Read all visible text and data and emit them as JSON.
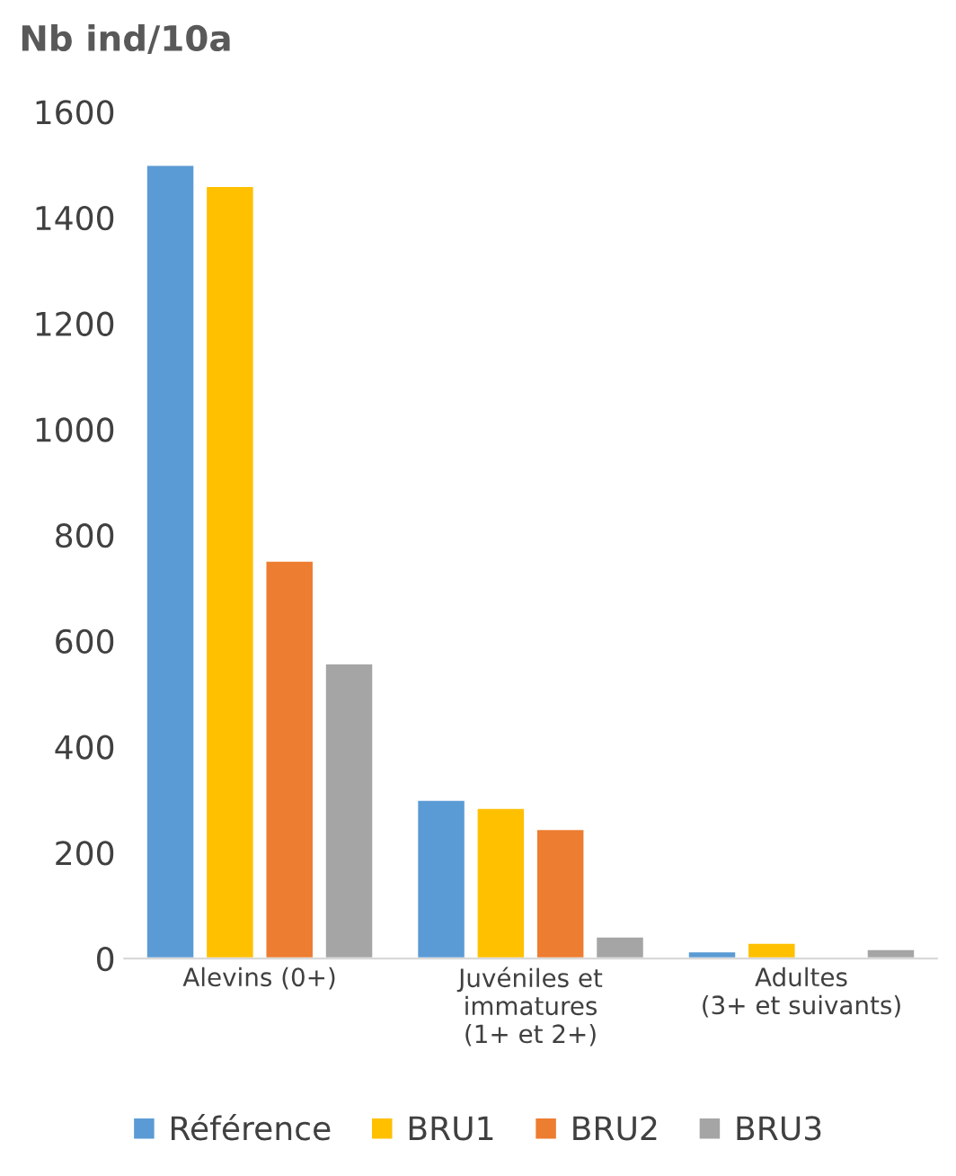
{
  "chart_data": {
    "type": "bar",
    "title": "Nb ind/10a",
    "categories": [
      "Alevins (0+)",
      "Juvéniles et\nimmatures\n(1+ et 2+)",
      "Adultes\n(3+ et suivants)"
    ],
    "series": [
      {
        "name": "Référence",
        "color": "#5b9bd5",
        "values": [
          1500,
          300,
          14
        ]
      },
      {
        "name": "BRU1",
        "color": "#ffc000",
        "values": [
          1460,
          285,
          30
        ]
      },
      {
        "name": "BRU2",
        "color": "#ed7d31",
        "values": [
          752,
          245,
          null
        ]
      },
      {
        "name": "BRU3",
        "color": "#a5a5a5",
        "values": [
          558,
          42,
          18
        ]
      }
    ],
    "ylim": [
      0,
      1600
    ],
    "yticks": [
      0,
      200,
      400,
      600,
      800,
      1000,
      1200,
      1400,
      1600
    ],
    "grid": false,
    "legend": "bottom"
  }
}
